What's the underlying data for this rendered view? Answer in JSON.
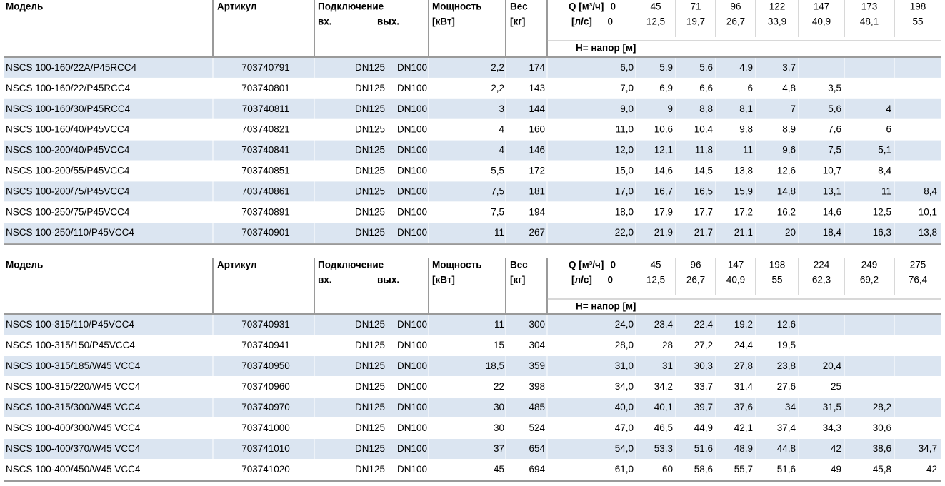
{
  "tables": [
    {
      "header": {
        "model": "Модель",
        "article": "Артикул",
        "connection": "Подключение",
        "inlet": "вх.",
        "outlet": "вых.",
        "power": "Мощность",
        "power_unit": "[кВт]",
        "weight": "Вес",
        "weight_unit": "[кг]",
        "q_m3h": "Q [м³/ч]",
        "q_ls": "[л/с]",
        "head_label": "H= напор [м]",
        "flow_m3h": [
          "0",
          "45",
          "71",
          "96",
          "122",
          "147",
          "173",
          "198"
        ],
        "flow_ls": [
          "0",
          "12,5",
          "19,7",
          "26,7",
          "33,9",
          "40,9",
          "48,1",
          "55"
        ]
      },
      "rows": [
        {
          "model": "NSCS 100-160/22A/P45RCC4",
          "article": "703740791",
          "inlet": "DN125",
          "outlet": "DN100",
          "power": "2,2",
          "weight": "174",
          "head": [
            "6,0",
            "5,9",
            "5,6",
            "4,9",
            "3,7"
          ]
        },
        {
          "model": "NSCS 100-160/22/P45RCC4",
          "article": "703740801",
          "inlet": "DN125",
          "outlet": "DN100",
          "power": "2,2",
          "weight": "143",
          "head": [
            "7,0",
            "6,9",
            "6,6",
            "6",
            "4,8",
            "3,5"
          ]
        },
        {
          "model": "NSCS 100-160/30/P45RCC4",
          "article": "703740811",
          "inlet": "DN125",
          "outlet": "DN100",
          "power": "3",
          "weight": "144",
          "head": [
            "9,0",
            "9",
            "8,8",
            "8,1",
            "7",
            "5,6",
            "4"
          ]
        },
        {
          "model": "NSCS 100-160/40/P45VCC4",
          "article": "703740821",
          "inlet": "DN125",
          "outlet": "DN100",
          "power": "4",
          "weight": "160",
          "head": [
            "11,0",
            "10,6",
            "10,4",
            "9,8",
            "8,9",
            "7,6",
            "6"
          ]
        },
        {
          "model": "NSCS 100-200/40/P45VCC4",
          "article": "703740841",
          "inlet": "DN125",
          "outlet": "DN100",
          "power": "4",
          "weight": "146",
          "head": [
            "12,0",
            "12,1",
            "11,8",
            "11",
            "9,6",
            "7,5",
            "5,1"
          ]
        },
        {
          "model": "NSCS 100-200/55/P45VCC4",
          "article": "703740851",
          "inlet": "DN125",
          "outlet": "DN100",
          "power": "5,5",
          "weight": "172",
          "head": [
            "15,0",
            "14,6",
            "14,5",
            "13,8",
            "12,6",
            "10,7",
            "8,4"
          ]
        },
        {
          "model": "NSCS 100-200/75/P45VCC4",
          "article": "703740861",
          "inlet": "DN125",
          "outlet": "DN100",
          "power": "7,5",
          "weight": "181",
          "head": [
            "17,0",
            "16,7",
            "16,5",
            "15,9",
            "14,8",
            "13,1",
            "11",
            "8,4"
          ]
        },
        {
          "model": "NSCS 100-250/75/P45VCC4",
          "article": "703740891",
          "inlet": "DN125",
          "outlet": "DN100",
          "power": "7,5",
          "weight": "194",
          "head": [
            "18,0",
            "17,9",
            "17,7",
            "17,2",
            "16,2",
            "14,6",
            "12,5",
            "10,1"
          ]
        },
        {
          "model": "NSCS 100-250/110/P45VCC4",
          "article": "703740901",
          "inlet": "DN125",
          "outlet": "DN100",
          "power": "11",
          "weight": "267",
          "head": [
            "22,0",
            "21,9",
            "21,7",
            "21,1",
            "20",
            "18,4",
            "16,3",
            "13,8"
          ]
        }
      ]
    },
    {
      "header": {
        "model": "Модель",
        "article": "Артикул",
        "connection": "Подключение",
        "inlet": "вх.",
        "outlet": "вых.",
        "power": "Мощность",
        "power_unit": "[кВт]",
        "weight": "Вес",
        "weight_unit": "[кг]",
        "q_m3h": "Q [м³/ч]",
        "q_ls": "[л/с]",
        "head_label": "H= напор [м]",
        "flow_m3h": [
          "0",
          "45",
          "96",
          "147",
          "198",
          "224",
          "249",
          "275"
        ],
        "flow_ls": [
          "0",
          "12,5",
          "26,7",
          "40,9",
          "55",
          "62,3",
          "69,2",
          "76,4"
        ]
      },
      "rows": [
        {
          "model": "NSCS 100-315/110/P45VCC4",
          "article": "703740931",
          "inlet": "DN125",
          "outlet": "DN100",
          "power": "11",
          "weight": "300",
          "head": [
            "24,0",
            "23,4",
            "22,4",
            "19,2",
            "12,6"
          ]
        },
        {
          "model": "NSCS 100-315/150/P45VCC4",
          "article": "703740941",
          "inlet": "DN125",
          "outlet": "DN100",
          "power": "15",
          "weight": "304",
          "head": [
            "28,0",
            "28",
            "27,2",
            "24,4",
            "19,5"
          ]
        },
        {
          "model": "NSCS 100-315/185/W45 VCC4",
          "article": "703740950",
          "inlet": "DN125",
          "outlet": "DN100",
          "power": "18,5",
          "weight": "359",
          "head": [
            "31,0",
            "31",
            "30,3",
            "27,8",
            "23,8",
            "20,4"
          ]
        },
        {
          "model": "NSCS 100-315/220/W45 VCC4",
          "article": "703740960",
          "inlet": "DN125",
          "outlet": "DN100",
          "power": "22",
          "weight": "398",
          "head": [
            "34,0",
            "34,2",
            "33,7",
            "31,4",
            "27,6",
            "25"
          ]
        },
        {
          "model": "NSCS 100-315/300/W45 VCC4",
          "article": "703740970",
          "inlet": "DN125",
          "outlet": "DN100",
          "power": "30",
          "weight": "485",
          "head": [
            "40,0",
            "40,1",
            "39,7",
            "37,6",
            "34",
            "31,5",
            "28,2"
          ]
        },
        {
          "model": "NSCS 100-400/300/W45 VCC4",
          "article": "703741000",
          "inlet": "DN125",
          "outlet": "DN100",
          "power": "30",
          "weight": "524",
          "head": [
            "47,0",
            "46,5",
            "44,9",
            "42,1",
            "37,4",
            "34,3",
            "30,6"
          ]
        },
        {
          "model": "NSCS 100-400/370/W45 VCC4",
          "article": "703741010",
          "inlet": "DN125",
          "outlet": "DN100",
          "power": "37",
          "weight": "654",
          "head": [
            "54,0",
            "53,3",
            "51,6",
            "48,9",
            "44,8",
            "42",
            "38,6",
            "34,7"
          ]
        },
        {
          "model": "NSCS 100-400/450/W45 VCC4",
          "article": "703741020",
          "inlet": "DN125",
          "outlet": "DN100",
          "power": "45",
          "weight": "694",
          "head": [
            "61,0",
            "60",
            "58,6",
            "55,7",
            "51,6",
            "49",
            "45,8",
            "42"
          ]
        }
      ]
    }
  ]
}
